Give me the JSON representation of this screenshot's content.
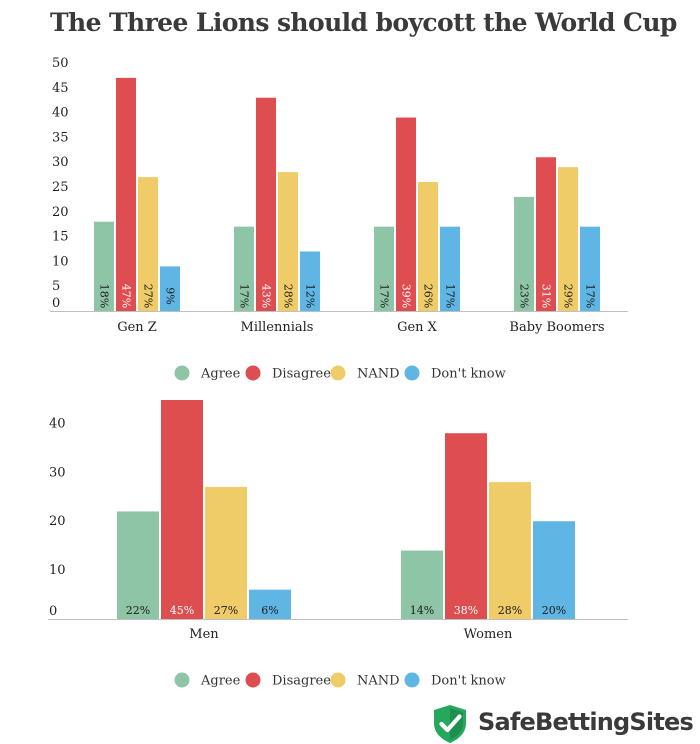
{
  "title": "The Three Lions should boycott the World Cup",
  "brand": {
    "name": "SafeBettingSites",
    "icon": "shield-check-icon"
  },
  "colors": {
    "Agree": "#8ec5a7",
    "Disagree": "#de4e51",
    "NAND": "#f0cc68",
    "Don't know": "#5fb5e3"
  },
  "chart_data": [
    {
      "type": "bar",
      "categories": [
        "Gen Z",
        "Millennials",
        "Gen X",
        "Baby Boomers"
      ],
      "series": [
        {
          "name": "Agree",
          "values": [
            18,
            17,
            17,
            23
          ],
          "labels": [
            "18%",
            "17%",
            "17%",
            "23%"
          ]
        },
        {
          "name": "Disagree",
          "values": [
            47,
            43,
            39,
            31
          ],
          "labels": [
            "47%",
            "43%",
            "39%",
            "31%"
          ]
        },
        {
          "name": "NAND",
          "values": [
            27,
            28,
            26,
            29
          ],
          "labels": [
            "27%",
            "28%",
            "26%",
            "29%"
          ]
        },
        {
          "name": "Don't know",
          "values": [
            9,
            12,
            17,
            17
          ],
          "labels": [
            "9%",
            "12%",
            "17%",
            "17%"
          ]
        }
      ],
      "yticks": [
        "0",
        "5",
        "10",
        "15",
        "20",
        "25",
        "30",
        "35",
        "40",
        "45",
        "50"
      ],
      "ylim": [
        0,
        50
      ],
      "legend": "bottom",
      "data_label_orientation": "vertical"
    },
    {
      "type": "bar",
      "categories": [
        "Men",
        "Women"
      ],
      "series": [
        {
          "name": "Agree",
          "values": [
            22,
            14
          ],
          "labels": [
            "22%",
            "14%"
          ]
        },
        {
          "name": "Disagree",
          "values": [
            45,
            38
          ],
          "labels": [
            "45%",
            "38%"
          ]
        },
        {
          "name": "NAND",
          "values": [
            27,
            28
          ],
          "labels": [
            "27%",
            "28%"
          ]
        },
        {
          "name": "Don't know",
          "values": [
            6,
            20
          ],
          "labels": [
            "6%",
            "20%"
          ]
        }
      ],
      "yticks": [
        "0",
        "10",
        "20",
        "30",
        "40"
      ],
      "ylim": [
        0,
        45
      ],
      "legend": "bottom",
      "data_label_orientation": "horizontal"
    }
  ]
}
